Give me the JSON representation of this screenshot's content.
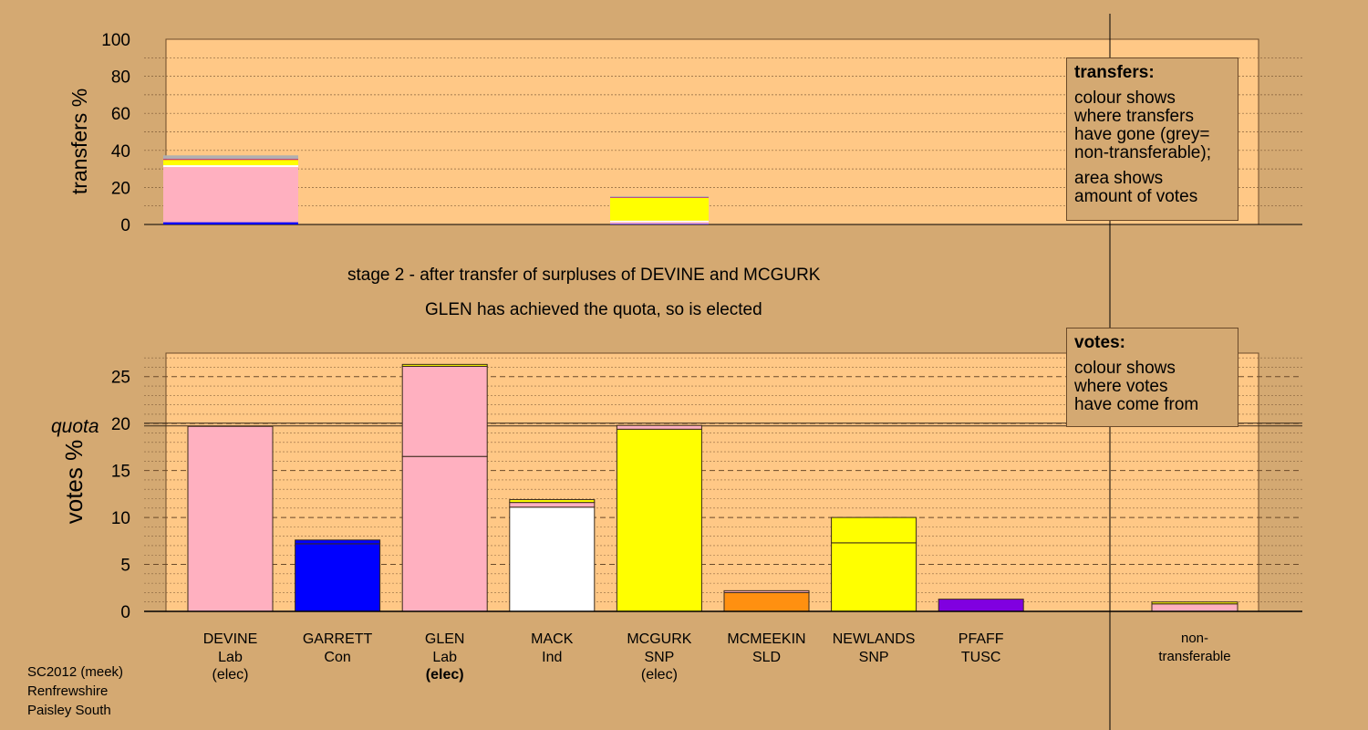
{
  "stage_title": "stage 2 - after transfer of surpluses of DEVINE and MCGURK",
  "stage_subtitle": "GLEN has achieved the quota, so is elected",
  "footer": {
    "line1": "SC2012 (meek)",
    "line2": "Renfrewshire",
    "line3": "Paisley South"
  },
  "legend_transfers": {
    "title": "transfers:",
    "line1": "colour shows",
    "line2": "where transfers",
    "line3": "have gone (grey=",
    "line4": "non-transferable);",
    "line5": "area shows",
    "line6": "amount of votes"
  },
  "legend_votes": {
    "title": "votes:",
    "line1": "colour shows",
    "line2": "where votes",
    "line3": "have come from"
  },
  "colors": {
    "background": "#d4a972",
    "plot": "#ffc886",
    "Lab": "#ffb0c0",
    "Con": "#0000ff",
    "Ind": "#ffffff",
    "SNP": "#ffff00",
    "SLD": "#ff9010",
    "TUSC": "#8000e0",
    "nontransferable": "#b0b0b0"
  },
  "chart_data": [
    {
      "type": "bar",
      "name": "transfers",
      "ylabel": "transfers %",
      "ylim": [
        0,
        100
      ],
      "yticks": [
        0,
        20,
        40,
        60,
        80,
        100
      ],
      "grid": true,
      "bars": [
        {
          "candidate": "DEVINE",
          "segments": [
            {
              "to": "GARRETT",
              "party": "Con",
              "value": 1.2
            },
            {
              "to": "GLEN",
              "party": "Lab",
              "value": 29.8
            },
            {
              "to": "MACK",
              "party": "Ind",
              "value": 1.0
            },
            {
              "to": "MCGURK",
              "party": "SNP",
              "value": 1.5
            },
            {
              "to": "NEWLANDS",
              "party": "SNP",
              "value": 1.2
            },
            {
              "to": "MCMEEKIN",
              "party": "SLD",
              "value": 0.5
            },
            {
              "to": "PFAFF",
              "party": "TUSC",
              "value": 0.3
            },
            {
              "to": "non-transferable",
              "party": "nontransferable",
              "value": 1.8
            }
          ]
        },
        {
          "candidate": "MCGURK",
          "segments": [
            {
              "to": "GARRETT",
              "party": "Con",
              "value": 0.3
            },
            {
              "to": "GLEN",
              "party": "Lab",
              "value": 1.0
            },
            {
              "to": "MACK",
              "party": "Ind",
              "value": 0.8
            },
            {
              "to": "NEWLANDS",
              "party": "SNP",
              "value": 12.2
            },
            {
              "to": "MCMEEKIN",
              "party": "SLD",
              "value": 0.3
            },
            {
              "to": "PFAFF",
              "party": "TUSC",
              "value": 0.2
            },
            {
              "to": "non-transferable",
              "party": "nontransferable",
              "value": 0.4
            }
          ]
        }
      ]
    },
    {
      "type": "bar",
      "name": "votes",
      "ylabel": "votes %",
      "ylim": [
        0,
        27.5
      ],
      "yticks": [
        0,
        5,
        10,
        15,
        20,
        25
      ],
      "quota_label": "quota",
      "quota": 19.9,
      "grid": true,
      "candidates": [
        {
          "name": "DEVINE",
          "party": "Lab",
          "status": "(elec)",
          "bold": false,
          "segments": [
            {
              "party": "Lab",
              "value": 19.7
            }
          ]
        },
        {
          "name": "GARRETT",
          "party": "Con",
          "status": "",
          "bold": false,
          "segments": [
            {
              "party": "Con",
              "value": 7.2
            },
            {
              "party": "Con",
              "value": 0.4
            }
          ]
        },
        {
          "name": "GLEN",
          "party": "Lab",
          "status": "(elec)",
          "bold": true,
          "segments": [
            {
              "party": "Lab",
              "value": 16.5
            },
            {
              "party": "Lab",
              "value": 9.6
            },
            {
              "party": "SNP",
              "value": 0.2
            }
          ]
        },
        {
          "name": "MACK",
          "party": "Ind",
          "status": "",
          "bold": false,
          "segments": [
            {
              "party": "Ind",
              "value": 11.1
            },
            {
              "party": "Lab",
              "value": 0.5
            },
            {
              "party": "SNP",
              "value": 0.3
            }
          ]
        },
        {
          "name": "MCGURK",
          "party": "SNP",
          "status": "(elec)",
          "bold": false,
          "segments": [
            {
              "party": "SNP",
              "value": 19.4
            },
            {
              "party": "Lab",
              "value": 0.4
            }
          ]
        },
        {
          "name": "MCMEEKIN",
          "party": "SLD",
          "status": "",
          "bold": false,
          "segments": [
            {
              "party": "SLD",
              "value": 2.0
            },
            {
              "party": "Lab",
              "value": 0.2
            }
          ]
        },
        {
          "name": "NEWLANDS",
          "party": "SNP",
          "status": "",
          "bold": false,
          "segments": [
            {
              "party": "SNP",
              "value": 7.3
            },
            {
              "party": "SNP",
              "value": 2.7
            }
          ]
        },
        {
          "name": "PFAFF",
          "party": "TUSC",
          "status": "",
          "bold": false,
          "segments": [
            {
              "party": "TUSC",
              "value": 1.3
            }
          ]
        }
      ],
      "nontransferable": {
        "label1": "non-",
        "label2": "transferable",
        "segments": [
          {
            "party": "Lab",
            "value": 0.8
          },
          {
            "party": "SNP",
            "value": 0.2
          }
        ]
      }
    }
  ]
}
